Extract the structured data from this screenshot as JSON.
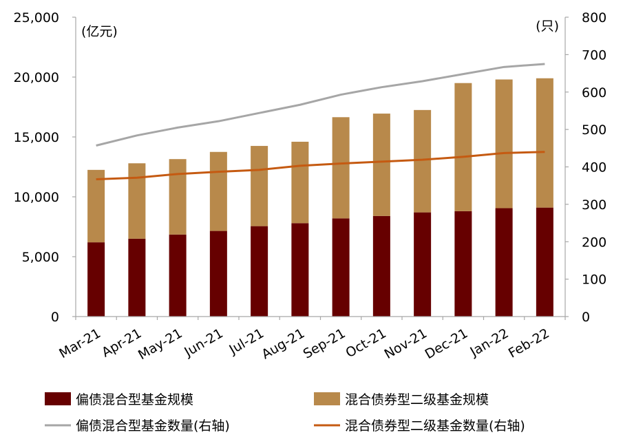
{
  "chart_data": {
    "type": "bar",
    "stacked": true,
    "categories": [
      "Mar-21",
      "Apr-21",
      "May-21",
      "Jun-21",
      "Jul-21",
      "Aug-21",
      "Sep-21",
      "Oct-21",
      "Nov-21",
      "Dec-21",
      "Jan-22",
      "Feb-22"
    ],
    "left_axis": {
      "unit_label": "(亿元)",
      "ylim": [
        0,
        25000
      ],
      "ticks": [
        0,
        5000,
        10000,
        15000,
        20000,
        25000
      ],
      "tick_labels": [
        "0",
        "5,000",
        "10,000",
        "15,000",
        "20,000",
        "25,000"
      ]
    },
    "right_axis": {
      "unit_label": "(只)",
      "ylim": [
        0,
        800
      ],
      "ticks": [
        0,
        100,
        200,
        300,
        400,
        500,
        600,
        700,
        800
      ],
      "tick_labels": [
        "0",
        "100",
        "200",
        "300",
        "400",
        "500",
        "600",
        "700",
        "800"
      ]
    },
    "series": [
      {
        "name": "偏债混合型基金规模",
        "kind": "bar",
        "axis": "left",
        "color": "#660000",
        "values": [
          6200,
          6500,
          6850,
          7150,
          7550,
          7800,
          8200,
          8400,
          8700,
          8800,
          9050,
          9100
        ]
      },
      {
        "name": "混合债券型二级基金规模",
        "kind": "bar",
        "axis": "left",
        "color": "#b8894b",
        "values": [
          6050,
          6300,
          6300,
          6600,
          6700,
          6800,
          8450,
          8550,
          8550,
          10700,
          10750,
          10800
        ]
      },
      {
        "name": "偏债混合型基金数量(右轴)",
        "kind": "line",
        "axis": "right",
        "color": "#a6a6a6",
        "values": [
          457,
          484,
          505,
          522,
          544,
          566,
          593,
          613,
          629,
          648,
          667,
          675
        ]
      },
      {
        "name": "混合债券型二级基金数量(右轴)",
        "kind": "line",
        "axis": "right",
        "color": "#c55a11",
        "values": [
          367,
          371,
          381,
          387,
          392,
          403,
          409,
          414,
          419,
          427,
          437,
          440
        ]
      }
    ],
    "legend": {
      "placement": "bottom",
      "items": [
        "偏债混合型基金规模",
        "混合债券型二级基金规模",
        "偏债混合型基金数量(右轴)",
        "混合债券型二级基金数量(右轴)"
      ]
    },
    "grid": false
  }
}
